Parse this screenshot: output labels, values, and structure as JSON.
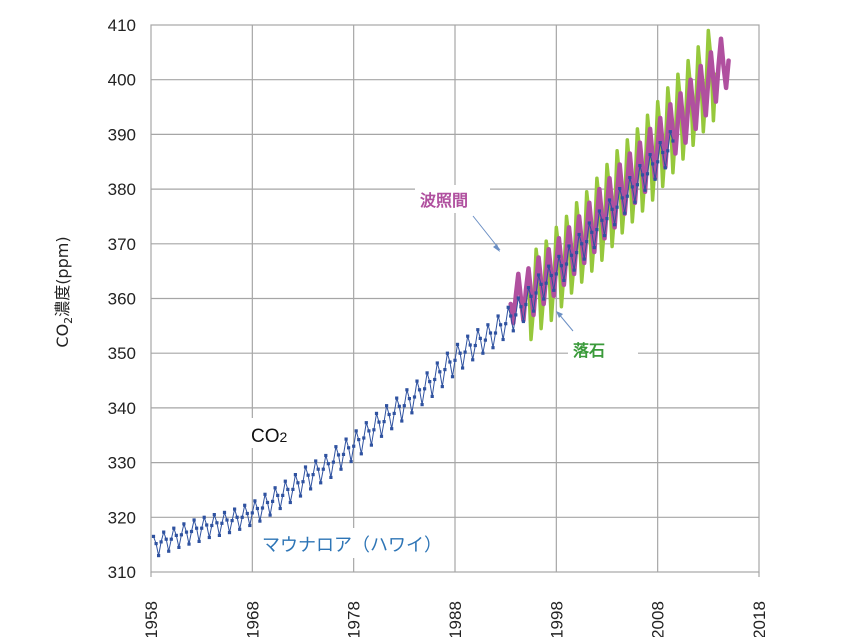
{
  "chart_data": {
    "type": "line",
    "title": "",
    "xlabel": "",
    "ylabel": "CO₂濃度(ppm)",
    "ylabel_main": "CO",
    "ylabel_sub": "2",
    "ylabel_rest": "濃度(ppm)",
    "xlim": [
      1958,
      2018
    ],
    "ylim": [
      310,
      410
    ],
    "grid": true,
    "x_ticks": [
      "1958",
      "1968",
      "1978",
      "1988",
      "1998",
      "2008",
      "2018"
    ],
    "y_ticks": [
      "310",
      "320",
      "330",
      "340",
      "350",
      "360",
      "370",
      "380",
      "390",
      "400",
      "410"
    ],
    "colors": {
      "mauna_loa": "#2f52a0",
      "hateruma": "#b0509f",
      "yonaguni": "#96c83c",
      "grid": "#a6a6a6",
      "arrow": "#6b8fc4"
    },
    "annotations": {
      "co2": {
        "main": "CO",
        "sub": "2"
      },
      "mauna_loa": "マウナロア（ハワイ）",
      "hateruma": "波照間",
      "yonaguni": "落石"
    },
    "series": [
      {
        "name": "マウナロア（ハワイ）",
        "key": "mauna_loa",
        "start": 1958.25,
        "step": 0.25,
        "values": [
          316.5,
          315.2,
          313.0,
          315.5,
          317.3,
          316.0,
          313.8,
          316.0,
          318.0,
          316.7,
          314.5,
          316.8,
          318.8,
          317.3,
          315.1,
          317.4,
          319.5,
          318.0,
          315.6,
          318.0,
          320.0,
          318.6,
          316.3,
          318.5,
          320.5,
          319.0,
          316.7,
          318.9,
          320.9,
          319.5,
          317.2,
          319.4,
          321.5,
          320.0,
          317.8,
          320.0,
          322.2,
          320.7,
          318.5,
          320.8,
          323.0,
          321.6,
          319.3,
          321.7,
          324.2,
          322.7,
          320.4,
          322.9,
          325.4,
          324.0,
          321.6,
          324.0,
          326.6,
          325.1,
          322.7,
          325.1,
          327.8,
          326.3,
          323.9,
          326.5,
          329.2,
          327.7,
          325.2,
          327.8,
          330.3,
          328.8,
          326.3,
          328.8,
          331.3,
          329.8,
          327.3,
          330.1,
          332.9,
          331.4,
          328.8,
          331.5,
          334.3,
          332.7,
          330.2,
          333.0,
          335.8,
          334.2,
          331.6,
          334.5,
          337.3,
          335.8,
          333.2,
          336.0,
          339.0,
          337.4,
          334.8,
          337.5,
          340.4,
          338.8,
          336.2,
          339.0,
          341.8,
          340.3,
          337.6,
          340.4,
          343.3,
          341.7,
          339.1,
          342.0,
          344.9,
          343.3,
          340.6,
          343.5,
          346.4,
          344.8,
          342.1,
          345.2,
          348.2,
          346.6,
          343.9,
          347.0,
          350.0,
          348.4,
          345.7,
          348.7,
          351.6,
          350.0,
          347.3,
          350.2,
          353.1,
          351.5,
          348.8,
          351.4,
          354.3,
          352.7,
          350.0,
          352.4,
          355.2,
          353.7,
          351.0,
          353.7,
          356.8,
          355.2,
          352.5,
          355.4,
          358.4,
          356.8,
          354.1,
          357.0,
          360.1,
          358.5,
          355.8,
          358.9,
          362.0,
          360.4,
          357.7,
          361.0,
          364.3,
          362.6,
          359.9,
          362.8,
          365.9,
          364.2,
          361.5,
          364.5,
          367.7,
          366.0,
          363.3,
          366.3,
          369.6,
          367.9,
          365.2,
          368.4,
          371.7,
          370.0,
          367.2,
          370.4,
          373.8,
          372.1,
          369.3,
          372.6,
          376.0,
          374.3,
          371.5,
          374.6,
          378.0,
          376.3,
          373.5,
          376.7,
          380.1,
          378.4,
          375.6,
          378.7,
          382.1,
          380.4,
          377.6,
          380.8,
          384.3,
          382.6,
          379.8,
          382.8,
          386.3,
          384.6,
          381.8,
          385.0,
          388.5,
          386.7,
          383.9,
          387.0,
          390.5,
          388.8
        ]
      },
      {
        "name": "波照間",
        "key": "hateruma",
        "start": 1993.5,
        "step": 0.25,
        "values": [
          359.0,
          355.5,
          360.5,
          364.5,
          360.0,
          356.0,
          361.5,
          365.5,
          361.0,
          357.0,
          363.0,
          367.5,
          363.0,
          359.0,
          364.5,
          369.0,
          364.5,
          360.5,
          366.5,
          371.0,
          366.5,
          362.5,
          368.5,
          373.0,
          368.5,
          364.5,
          370.5,
          375.0,
          370.5,
          366.5,
          372.5,
          377.5,
          372.5,
          368.5,
          375.0,
          380.0,
          375.0,
          371.0,
          377.0,
          382.0,
          377.0,
          373.0,
          379.5,
          384.5,
          379.5,
          375.5,
          381.5,
          386.5,
          381.5,
          377.5,
          383.5,
          388.5,
          383.5,
          379.5,
          386.0,
          391.0,
          386.0,
          382.0,
          388.0,
          393.0,
          388.0,
          384.0,
          390.5,
          395.5,
          390.5,
          386.5,
          392.5,
          397.5,
          392.5,
          388.5,
          395.0,
          400.0,
          395.0,
          391.0,
          397.5,
          402.5,
          397.5,
          393.5,
          400.0,
          405.0,
          400.0,
          396.0,
          402.5,
          407.5,
          402.5,
          398.5,
          403.5
        ]
      },
      {
        "name": "落石",
        "key": "yonaguni",
        "start": 1995.25,
        "step": 0.25,
        "values": [
          364.5,
          352.5,
          358.0,
          369.0,
          365.0,
          354.5,
          360.5,
          370.5,
          366.5,
          356.0,
          362.5,
          373.0,
          369.0,
          358.5,
          364.5,
          375.0,
          371.0,
          361.0,
          366.5,
          377.5,
          373.0,
          363.0,
          368.5,
          379.5,
          375.0,
          365.0,
          371.0,
          382.0,
          377.5,
          367.0,
          373.5,
          384.5,
          380.0,
          369.5,
          375.5,
          387.0,
          382.0,
          372.0,
          378.0,
          389.0,
          384.0,
          374.0,
          380.5,
          391.0,
          386.5,
          376.0,
          382.5,
          393.5,
          388.5,
          378.0,
          385.0,
          396.0,
          391.0,
          380.5,
          387.5,
          398.5,
          393.5,
          383.0,
          390.0,
          401.0,
          396.0,
          385.5,
          392.5,
          403.5,
          398.5,
          388.0,
          395.0,
          406.0,
          401.0,
          390.5,
          397.5,
          409.0,
          404.0,
          392.5,
          401.0
        ]
      }
    ]
  }
}
